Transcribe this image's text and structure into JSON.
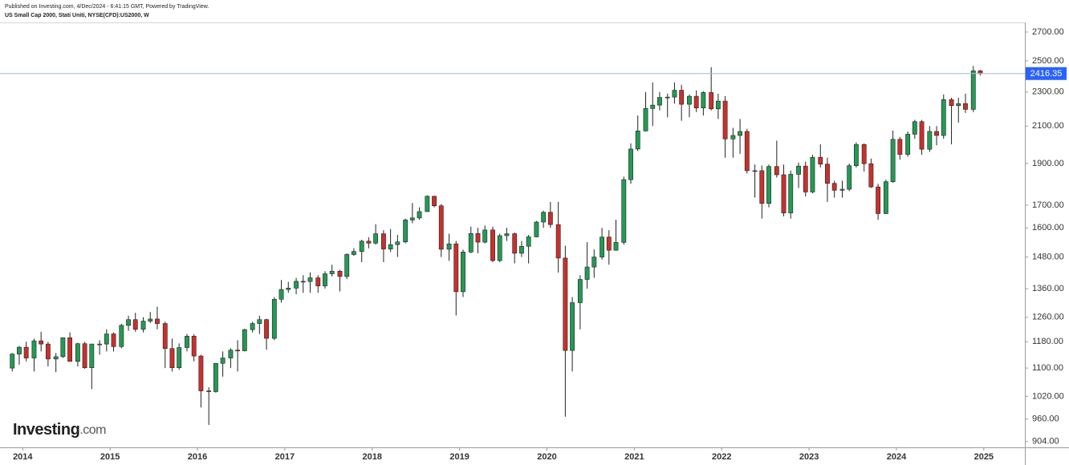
{
  "chart_data": {
    "type": "candlestick",
    "publisher_note": "Published on Investing.com, 4/Dec/2024 - 6:41:15 GMT, Powered by TradingView.",
    "title": "US Small Cap 2000, Stati Uniti, NYSE(CFD):US2000, W",
    "logo": "Investing",
    "logo_suffix": ".com",
    "log_scale": true,
    "grid": false,
    "up_color": "#239a55",
    "down_color": "#c9302c",
    "last_price": 2416.35,
    "last_price_color": "#2962ff",
    "xlim": [
      2013.74,
      2025.47
    ],
    "xticks": [
      2014,
      2015,
      2016,
      2017,
      2018,
      2019,
      2020,
      2021,
      2022,
      2023,
      2024,
      2025
    ],
    "ylim": [
      890,
      2770
    ],
    "yticks": [
      {
        "value": 904,
        "label": "904.00"
      },
      {
        "value": 960,
        "label": "960.00"
      },
      {
        "value": 1020,
        "label": "1020.00"
      },
      {
        "value": 1100,
        "label": "1100.00"
      },
      {
        "value": 1180,
        "label": "1180.00"
      },
      {
        "value": 1260,
        "label": "1260.00"
      },
      {
        "value": 1360,
        "label": "1360.00"
      },
      {
        "value": 1480,
        "label": "1480.00"
      },
      {
        "value": 1600,
        "label": "1600.00"
      },
      {
        "value": 1700,
        "label": "1700.00"
      },
      {
        "value": 1900,
        "label": "1900.00"
      },
      {
        "value": 2100,
        "label": "2100.00"
      },
      {
        "value": 2300,
        "label": "2300.00"
      },
      {
        "value": 2500,
        "label": "2500.00"
      },
      {
        "value": 2700,
        "label": "2700.00"
      }
    ],
    "x": [
      2013.88,
      2013.96,
      2014.04,
      2014.13,
      2014.21,
      2014.29,
      2014.38,
      2014.46,
      2014.54,
      2014.63,
      2014.71,
      2014.79,
      2014.88,
      2014.96,
      2015.04,
      2015.13,
      2015.21,
      2015.29,
      2015.38,
      2015.46,
      2015.54,
      2015.63,
      2015.71,
      2015.79,
      2015.88,
      2015.96,
      2016.04,
      2016.13,
      2016.21,
      2016.29,
      2016.38,
      2016.46,
      2016.54,
      2016.63,
      2016.71,
      2016.79,
      2016.88,
      2016.96,
      2017.04,
      2017.13,
      2017.21,
      2017.29,
      2017.38,
      2017.46,
      2017.54,
      2017.63,
      2017.71,
      2017.79,
      2017.88,
      2017.96,
      2018.04,
      2018.13,
      2018.21,
      2018.29,
      2018.38,
      2018.46,
      2018.54,
      2018.63,
      2018.71,
      2018.79,
      2018.88,
      2018.96,
      2019.04,
      2019.13,
      2019.21,
      2019.29,
      2019.38,
      2019.46,
      2019.54,
      2019.63,
      2019.71,
      2019.79,
      2019.88,
      2019.96,
      2020.04,
      2020.13,
      2020.21,
      2020.29,
      2020.38,
      2020.46,
      2020.54,
      2020.63,
      2020.71,
      2020.79,
      2020.88,
      2020.96,
      2021.04,
      2021.13,
      2021.21,
      2021.29,
      2021.38,
      2021.46,
      2021.54,
      2021.63,
      2021.71,
      2021.79,
      2021.88,
      2021.96,
      2022.04,
      2022.13,
      2022.21,
      2022.29,
      2022.38,
      2022.46,
      2022.54,
      2022.63,
      2022.71,
      2022.79,
      2022.88,
      2022.96,
      2023.04,
      2023.13,
      2023.21,
      2023.29,
      2023.38,
      2023.46,
      2023.54,
      2023.63,
      2023.71,
      2023.79,
      2023.88,
      2023.96,
      2024.04,
      2024.13,
      2024.21,
      2024.29,
      2024.38,
      2024.46,
      2024.54,
      2024.63,
      2024.71,
      2024.79,
      2024.88,
      2024.96
    ],
    "ohlc": [
      [
        1100,
        1145,
        1090,
        1142
      ],
      [
        1142,
        1167,
        1110,
        1163
      ],
      [
        1163,
        1180,
        1120,
        1130
      ],
      [
        1130,
        1190,
        1090,
        1183
      ],
      [
        1183,
        1212,
        1150,
        1173
      ],
      [
        1173,
        1180,
        1105,
        1127
      ],
      [
        1127,
        1145,
        1088,
        1134
      ],
      [
        1134,
        1193,
        1130,
        1193
      ],
      [
        1193,
        1210,
        1120,
        1120
      ],
      [
        1120,
        1177,
        1105,
        1174
      ],
      [
        1174,
        1180,
        1098,
        1101
      ],
      [
        1101,
        1174,
        1040,
        1173
      ],
      [
        1173,
        1185,
        1140,
        1173
      ],
      [
        1173,
        1220,
        1150,
        1205
      ],
      [
        1205,
        1210,
        1150,
        1165
      ],
      [
        1165,
        1238,
        1160,
        1233
      ],
      [
        1233,
        1265,
        1215,
        1252
      ],
      [
        1252,
        1275,
        1212,
        1220
      ],
      [
        1220,
        1260,
        1210,
        1247
      ],
      [
        1247,
        1278,
        1240,
        1254
      ],
      [
        1254,
        1296,
        1220,
        1239
      ],
      [
        1239,
        1245,
        1100,
        1159
      ],
      [
        1159,
        1190,
        1090,
        1101
      ],
      [
        1101,
        1175,
        1095,
        1162
      ],
      [
        1162,
        1205,
        1150,
        1198
      ],
      [
        1198,
        1204,
        1120,
        1136
      ],
      [
        1136,
        1140,
        990,
        1035
      ],
      [
        1035,
        1045,
        945,
        1033
      ],
      [
        1033,
        1115,
        1030,
        1114
      ],
      [
        1114,
        1150,
        1075,
        1130
      ],
      [
        1130,
        1160,
        1100,
        1154
      ],
      [
        1154,
        1185,
        1090,
        1152
      ],
      [
        1152,
        1222,
        1150,
        1219
      ],
      [
        1219,
        1245,
        1210,
        1239
      ],
      [
        1239,
        1265,
        1205,
        1252
      ],
      [
        1252,
        1255,
        1155,
        1191
      ],
      [
        1191,
        1330,
        1185,
        1322
      ],
      [
        1322,
        1392,
        1310,
        1357
      ],
      [
        1357,
        1385,
        1345,
        1362
      ],
      [
        1362,
        1400,
        1340,
        1387
      ],
      [
        1387,
        1410,
        1345,
        1386
      ],
      [
        1386,
        1420,
        1345,
        1400
      ],
      [
        1400,
        1410,
        1345,
        1370
      ],
      [
        1370,
        1425,
        1360,
        1415
      ],
      [
        1415,
        1450,
        1405,
        1425
      ],
      [
        1425,
        1430,
        1350,
        1405
      ],
      [
        1405,
        1495,
        1395,
        1490
      ],
      [
        1490,
        1515,
        1485,
        1502
      ],
      [
        1502,
        1550,
        1460,
        1544
      ],
      [
        1544,
        1560,
        1515,
        1536
      ],
      [
        1536,
        1616,
        1530,
        1575
      ],
      [
        1575,
        1590,
        1460,
        1512
      ],
      [
        1512,
        1595,
        1500,
        1530
      ],
      [
        1530,
        1570,
        1480,
        1541
      ],
      [
        1541,
        1640,
        1535,
        1634
      ],
      [
        1634,
        1710,
        1620,
        1643
      ],
      [
        1643,
        1690,
        1635,
        1671
      ],
      [
        1671,
        1745,
        1670,
        1741
      ],
      [
        1741,
        1743,
        1690,
        1697
      ],
      [
        1697,
        1705,
        1480,
        1511
      ],
      [
        1511,
        1575,
        1465,
        1533
      ],
      [
        1533,
        1545,
        1266,
        1349
      ],
      [
        1349,
        1510,
        1330,
        1500
      ],
      [
        1500,
        1605,
        1495,
        1576
      ],
      [
        1576,
        1600,
        1495,
        1540
      ],
      [
        1540,
        1610,
        1535,
        1591
      ],
      [
        1591,
        1605,
        1460,
        1466
      ],
      [
        1466,
        1575,
        1460,
        1567
      ],
      [
        1567,
        1600,
        1545,
        1575
      ],
      [
        1575,
        1580,
        1455,
        1495
      ],
      [
        1495,
        1545,
        1480,
        1523
      ],
      [
        1523,
        1570,
        1455,
        1562
      ],
      [
        1562,
        1630,
        1560,
        1625
      ],
      [
        1625,
        1675,
        1600,
        1668
      ],
      [
        1668,
        1715,
        1600,
        1614
      ],
      [
        1614,
        1715,
        1420,
        1476
      ],
      [
        1476,
        1525,
        966,
        1153
      ],
      [
        1153,
        1330,
        1090,
        1310
      ],
      [
        1310,
        1410,
        1220,
        1394
      ],
      [
        1394,
        1540,
        1360,
        1441
      ],
      [
        1441,
        1510,
        1400,
        1480
      ],
      [
        1480,
        1600,
        1470,
        1561
      ],
      [
        1561,
        1590,
        1450,
        1507
      ],
      [
        1507,
        1635,
        1505,
        1539
      ],
      [
        1539,
        1835,
        1530,
        1820
      ],
      [
        1820,
        2005,
        1800,
        1975
      ],
      [
        1975,
        2160,
        1965,
        2073
      ],
      [
        2073,
        2300,
        2070,
        2201
      ],
      [
        2201,
        2360,
        2100,
        2221
      ],
      [
        2221,
        2300,
        2190,
        2267
      ],
      [
        2267,
        2290,
        2150,
        2269
      ],
      [
        2269,
        2360,
        2230,
        2311
      ],
      [
        2311,
        2345,
        2130,
        2226
      ],
      [
        2226,
        2285,
        2150,
        2274
      ],
      [
        2274,
        2310,
        2180,
        2204
      ],
      [
        2204,
        2305,
        2160,
        2297
      ],
      [
        2297,
        2458,
        2190,
        2199
      ],
      [
        2199,
        2290,
        2140,
        2245
      ],
      [
        2245,
        2275,
        1930,
        2029
      ],
      [
        2029,
        2090,
        1930,
        2048
      ],
      [
        2048,
        2140,
        1950,
        2070
      ],
      [
        2070,
        2085,
        1850,
        1864
      ],
      [
        1864,
        1895,
        1735,
        1864
      ],
      [
        1864,
        1890,
        1640,
        1708
      ],
      [
        1708,
        1895,
        1690,
        1885
      ],
      [
        1885,
        2020,
        1830,
        1844
      ],
      [
        1844,
        1895,
        1650,
        1665
      ],
      [
        1665,
        1865,
        1640,
        1846
      ],
      [
        1846,
        1905,
        1780,
        1887
      ],
      [
        1887,
        1910,
        1740,
        1761
      ],
      [
        1761,
        1945,
        1755,
        1932
      ],
      [
        1932,
        2000,
        1880,
        1897
      ],
      [
        1897,
        1930,
        1715,
        1802
      ],
      [
        1802,
        1815,
        1735,
        1769
      ],
      [
        1769,
        1815,
        1735,
        1774
      ],
      [
        1774,
        1900,
        1765,
        1889
      ],
      [
        1889,
        2010,
        1880,
        1999
      ],
      [
        1999,
        2005,
        1860,
        1899
      ],
      [
        1899,
        1925,
        1780,
        1785
      ],
      [
        1785,
        1800,
        1635,
        1662
      ],
      [
        1662,
        1820,
        1660,
        1810
      ],
      [
        1810,
        2075,
        1805,
        2027
      ],
      [
        2027,
        2040,
        1920,
        1947
      ],
      [
        1947,
        2070,
        1935,
        2055
      ],
      [
        2055,
        2135,
        2030,
        2125
      ],
      [
        2125,
        2135,
        1945,
        1974
      ],
      [
        1974,
        2100,
        1960,
        2070
      ],
      [
        2070,
        2100,
        1995,
        2048
      ],
      [
        2048,
        2285,
        2030,
        2254
      ],
      [
        2254,
        2265,
        2000,
        2218
      ],
      [
        2218,
        2265,
        2120,
        2230
      ],
      [
        2230,
        2290,
        2175,
        2196
      ],
      [
        2196,
        2466,
        2180,
        2434
      ],
      [
        2434,
        2440,
        2405,
        2416.35
      ]
    ]
  }
}
